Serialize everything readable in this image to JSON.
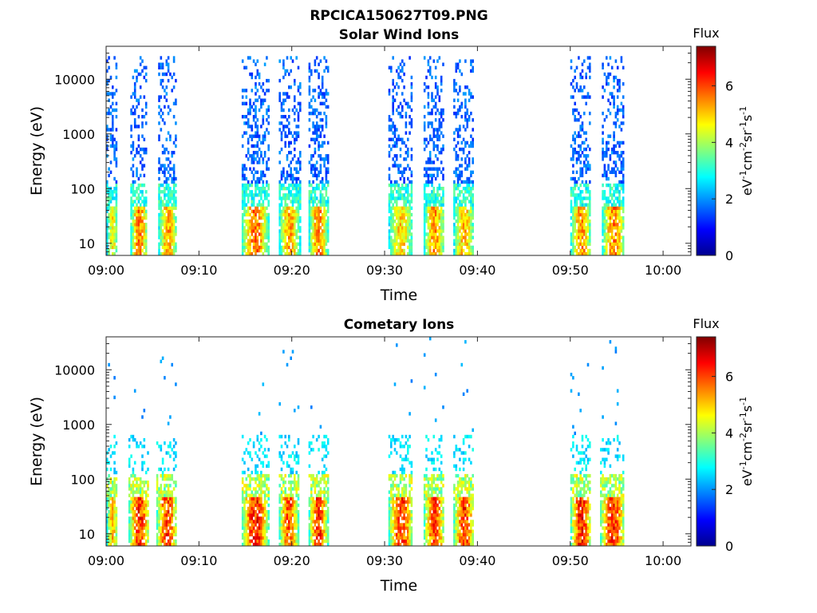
{
  "figure_title": "RPCICA150627T09.PNG",
  "chart_data": [
    {
      "type": "heatmap",
      "title": "Solar Wind Ions",
      "xlabel": "Time",
      "ylabel": "Energy (eV)",
      "x_ticks": [
        "09:00",
        "09:10",
        "09:20",
        "09:30",
        "09:40",
        "09:50",
        "10:00"
      ],
      "x_range_minutes": [
        0,
        63
      ],
      "y_scale": "log",
      "y_ticks": [
        "10",
        "100",
        "1000",
        "10000"
      ],
      "y_range": [
        6,
        40000
      ],
      "colorbar": {
        "label": "Flux",
        "unit_base": [
          "eV",
          "cm",
          "sr",
          "s"
        ],
        "unit_exponents": [
          "-1",
          "-2",
          "-1",
          "-1"
        ],
        "ticks": [
          "0",
          "2",
          "4",
          "6"
        ],
        "range": [
          0,
          7.4
        ],
        "colormap": "jet"
      },
      "bursts": [
        {
          "t_start_min": 0.0,
          "t_end_min": 1.2,
          "peak_flux": 5.3
        },
        {
          "t_start_min": 2.6,
          "t_end_min": 4.4,
          "peak_flux": 6.3
        },
        {
          "t_start_min": 5.6,
          "t_end_min": 7.6,
          "peak_flux": 6.0
        },
        {
          "t_start_min": 14.6,
          "t_end_min": 17.4,
          "peak_flux": 6.4
        },
        {
          "t_start_min": 18.6,
          "t_end_min": 20.8,
          "peak_flux": 6.0
        },
        {
          "t_start_min": 21.8,
          "t_end_min": 23.8,
          "peak_flux": 6.2
        },
        {
          "t_start_min": 30.4,
          "t_end_min": 33.0,
          "peak_flux": 5.6
        },
        {
          "t_start_min": 34.2,
          "t_end_min": 36.4,
          "peak_flux": 6.1
        },
        {
          "t_start_min": 37.4,
          "t_end_min": 39.6,
          "peak_flux": 5.8
        },
        {
          "t_start_min": 50.0,
          "t_end_min": 52.2,
          "peak_flux": 6.1
        },
        {
          "t_start_min": 53.4,
          "t_end_min": 55.8,
          "peak_flux": 6.3
        }
      ]
    },
    {
      "type": "heatmap",
      "title": "Cometary Ions",
      "xlabel": "Time",
      "ylabel": "Energy (eV)",
      "x_ticks": [
        "09:00",
        "09:10",
        "09:20",
        "09:30",
        "09:40",
        "09:50",
        "10:00"
      ],
      "x_range_minutes": [
        0,
        63
      ],
      "y_scale": "log",
      "y_ticks": [
        "10",
        "100",
        "1000",
        "10000"
      ],
      "y_range": [
        6,
        40000
      ],
      "colorbar": {
        "label": "Flux",
        "unit_base": [
          "eV",
          "cm",
          "sr",
          "s"
        ],
        "unit_exponents": [
          "-1",
          "-2",
          "-1",
          "-1"
        ],
        "ticks": [
          "0",
          "2",
          "4",
          "6"
        ],
        "range": [
          0,
          7.4
        ],
        "colormap": "jet"
      },
      "bursts": [
        {
          "t_start_min": 0.0,
          "t_end_min": 1.2,
          "peak_flux": 5.8
        },
        {
          "t_start_min": 2.4,
          "t_end_min": 4.6,
          "peak_flux": 7.0
        },
        {
          "t_start_min": 5.4,
          "t_end_min": 7.6,
          "peak_flux": 6.9
        },
        {
          "t_start_min": 14.6,
          "t_end_min": 17.4,
          "peak_flux": 7.1
        },
        {
          "t_start_min": 18.6,
          "t_end_min": 20.6,
          "peak_flux": 6.8
        },
        {
          "t_start_min": 21.8,
          "t_end_min": 23.8,
          "peak_flux": 7.0
        },
        {
          "t_start_min": 30.4,
          "t_end_min": 33.0,
          "peak_flux": 6.9
        },
        {
          "t_start_min": 34.2,
          "t_end_min": 36.4,
          "peak_flux": 6.8
        },
        {
          "t_start_min": 37.4,
          "t_end_min": 39.6,
          "peak_flux": 6.9
        },
        {
          "t_start_min": 50.0,
          "t_end_min": 52.2,
          "peak_flux": 7.1
        },
        {
          "t_start_min": 53.2,
          "t_end_min": 55.8,
          "peak_flux": 7.0
        }
      ]
    }
  ]
}
